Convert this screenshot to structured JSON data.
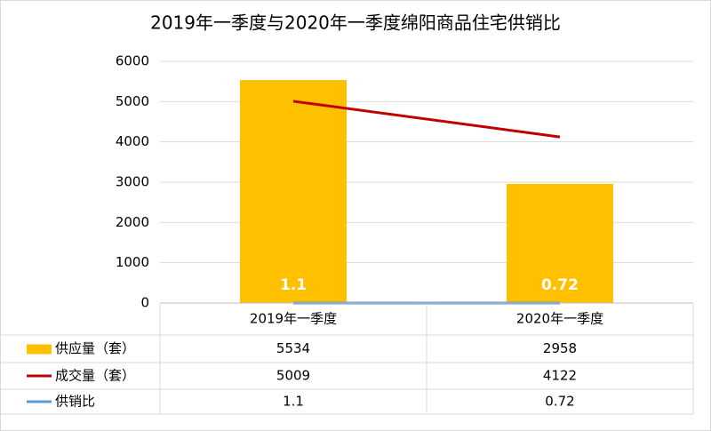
{
  "chart_data": {
    "type": "combo",
    "title": "2019年一季度与2020年一季度绵阳商品住宅供销比",
    "categories": [
      "2019年一季度",
      "2020年一季度"
    ],
    "series": [
      {
        "name": "供应量（套）",
        "type": "bar",
        "color": "#ffc000",
        "values": [
          5534,
          2958
        ]
      },
      {
        "name": "成交量（套）",
        "type": "line",
        "color": "#c00000",
        "values": [
          5009,
          4122
        ]
      },
      {
        "name": "供销比",
        "type": "line",
        "color": "#5b9bd5",
        "values": [
          1.1,
          0.72
        ],
        "data_labels": true
      }
    ],
    "ylim": [
      0,
      6000
    ],
    "yticks": [
      0,
      1000,
      2000,
      3000,
      4000,
      5000,
      6000
    ],
    "grid": true,
    "data_table": true
  }
}
